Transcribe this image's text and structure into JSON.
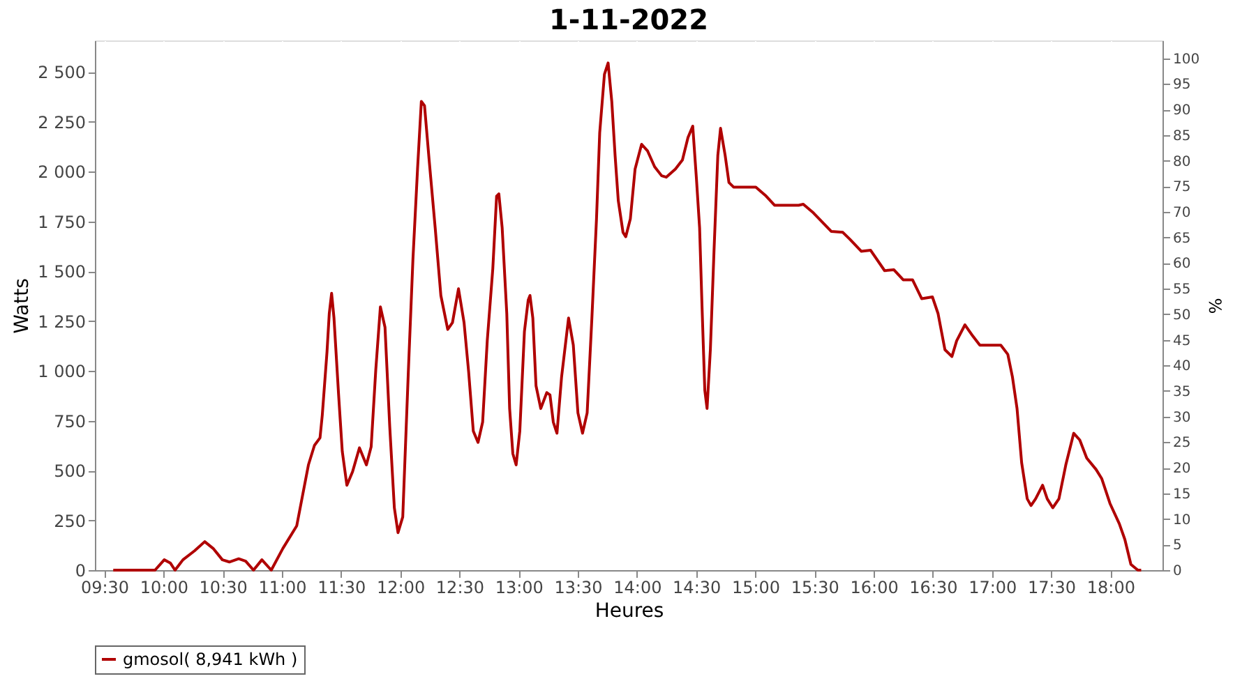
{
  "chart_data": {
    "type": "line",
    "title": "1-11-2022",
    "xlabel": "Heures",
    "ylabel": "Watts",
    "y2label": "%",
    "x": [
      9.575,
      9.861,
      9.928,
      10.006,
      10.057,
      10.097,
      10.164,
      10.262,
      10.348,
      10.419,
      10.497,
      10.556,
      10.635,
      10.694,
      10.76,
      10.831,
      10.91,
      11.008,
      11.125,
      11.224,
      11.275,
      11.322,
      11.341,
      11.381,
      11.4,
      11.42,
      11.44,
      11.479,
      11.51,
      11.549,
      11.597,
      11.655,
      11.714,
      11.754,
      11.793,
      11.832,
      11.871,
      11.911,
      11.95,
      11.981,
      12.021,
      12.068,
      12.107,
      12.146,
      12.178,
      12.205,
      12.244,
      12.295,
      12.343,
      12.401,
      12.441,
      12.492,
      12.539,
      12.578,
      12.617,
      12.657,
      12.696,
      12.735,
      12.782,
      12.814,
      12.833,
      12.861,
      12.9,
      12.924,
      12.951,
      12.979,
      13.01,
      13.049,
      13.081,
      13.096,
      13.12,
      13.147,
      13.187,
      13.238,
      13.265,
      13.293,
      13.324,
      13.363,
      13.422,
      13.462,
      13.501,
      13.54,
      13.579,
      13.619,
      13.658,
      13.685,
      13.725,
      13.756,
      13.787,
      13.815,
      13.842,
      13.882,
      13.905,
      13.944,
      13.984,
      14.039,
      14.09,
      14.149,
      14.208,
      14.247,
      14.325,
      14.384,
      14.431,
      14.471,
      14.502,
      14.529,
      14.549,
      14.573,
      14.592,
      14.62,
      14.651,
      14.683,
      14.706,
      14.745,
      14.777,
      14.816,
      15.004,
      15.091,
      15.162,
      15.366,
      15.405,
      15.483,
      15.641,
      15.739,
      15.798,
      15.896,
      15.974,
      16.092,
      16.171,
      16.249,
      16.328,
      16.406,
      16.496,
      16.544,
      16.602,
      16.661,
      16.701,
      16.771,
      16.838,
      16.897,
      16.995,
      17.074,
      17.133,
      17.172,
      17.211,
      17.25,
      17.297,
      17.329,
      17.368,
      17.427,
      17.466,
      17.513,
      17.565,
      17.623,
      17.69,
      17.741,
      17.8,
      17.879,
      17.926,
      17.996,
      18.075,
      18.122,
      18.173,
      18.232,
      18.26
    ],
    "series": [
      {
        "name": "gmosol( 8,941 kWh )",
        "color": "#b00000",
        "values": [
          0,
          0,
          0,
          52,
          36,
          0,
          52,
          97,
          143,
          109,
          52,
          41,
          57,
          45,
          0,
          52,
          0,
          109,
          222,
          528,
          626,
          664,
          777,
          1095,
          1287,
          1389,
          1265,
          880,
          596,
          426,
          494,
          614,
          528,
          619,
          1004,
          1321,
          1219,
          721,
          313,
          188,
          267,
          993,
          1559,
          2013,
          2352,
          2330,
          2058,
          1718,
          1378,
          1208,
          1242,
          1412,
          1242,
          993,
          698,
          641,
          743,
          1151,
          1514,
          1877,
          1888,
          1718,
          1287,
          811,
          585,
          528,
          698,
          1197,
          1355,
          1378,
          1265,
          925,
          811,
          891,
          879,
          743,
          687,
          970,
          1265,
          1129,
          789,
          687,
          789,
          1265,
          1763,
          2194,
          2488,
          2545,
          2352,
          2081,
          1854,
          1695,
          1673,
          1763,
          2013,
          2137,
          2103,
          2024,
          1979,
          1972,
          2013,
          2058,
          2171,
          2228,
          1967,
          1718,
          1333,
          902,
          811,
          1106,
          1605,
          2081,
          2217,
          2081,
          1945,
          1922,
          1922,
          1877,
          1831,
          1831,
          1836,
          1797,
          1700,
          1695,
          1661,
          1600,
          1605,
          1503,
          1507,
          1457,
          1457,
          1362,
          1371,
          1287,
          1106,
          1072,
          1151,
          1231,
          1174,
          1129,
          1129,
          1129,
          1083,
          970,
          811,
          539,
          358,
          324,
          358,
          426,
          358,
          313,
          358,
          528,
          687,
          653,
          562,
          505,
          460,
          335,
          233,
          154,
          29,
          0,
          0
        ]
      }
    ],
    "xlim": [
      9.42,
      18.44
    ],
    "xticks": [
      {
        "value": 9.5,
        "label": "09:30"
      },
      {
        "value": 10,
        "label": "10:00"
      },
      {
        "value": 10.5,
        "label": "10:30"
      },
      {
        "value": 11,
        "label": "11:00"
      },
      {
        "value": 11.5,
        "label": "11:30"
      },
      {
        "value": 12,
        "label": "12:00"
      },
      {
        "value": 12.5,
        "label": "12:30"
      },
      {
        "value": 13,
        "label": "13:00"
      },
      {
        "value": 13.5,
        "label": "13:30"
      },
      {
        "value": 14,
        "label": "14:00"
      },
      {
        "value": 14.5,
        "label": "14:30"
      },
      {
        "value": 15,
        "label": "15:00"
      },
      {
        "value": 15.5,
        "label": "15:30"
      },
      {
        "value": 16,
        "label": "16:00"
      },
      {
        "value": 16.5,
        "label": "16:30"
      },
      {
        "value": 17,
        "label": "17:00"
      },
      {
        "value": 17.5,
        "label": "17:30"
      },
      {
        "value": 18,
        "label": "18:00"
      }
    ],
    "ylim": [
      0,
      2658
    ],
    "yticks": [
      0,
      250,
      500,
      750,
      {
        "value": 1000,
        "label": "1 000"
      },
      {
        "value": 1250,
        "label": "1 250"
      },
      {
        "value": 1500,
        "label": "1 500"
      },
      {
        "value": 1750,
        "label": "1 750"
      },
      {
        "value": 2000,
        "label": "2 000"
      },
      {
        "value": 2250,
        "label": "2 250"
      },
      {
        "value": 2500,
        "label": "2 500"
      }
    ],
    "y2lim": [
      0,
      103.5
    ],
    "y2ticks": [
      0,
      5,
      10,
      15,
      20,
      25,
      30,
      35,
      40,
      45,
      50,
      55,
      60,
      65,
      70,
      75,
      80,
      85,
      90,
      95,
      100
    ],
    "grid": true,
    "legend": "bottom",
    "marker": "none",
    "line_style": "solid"
  }
}
